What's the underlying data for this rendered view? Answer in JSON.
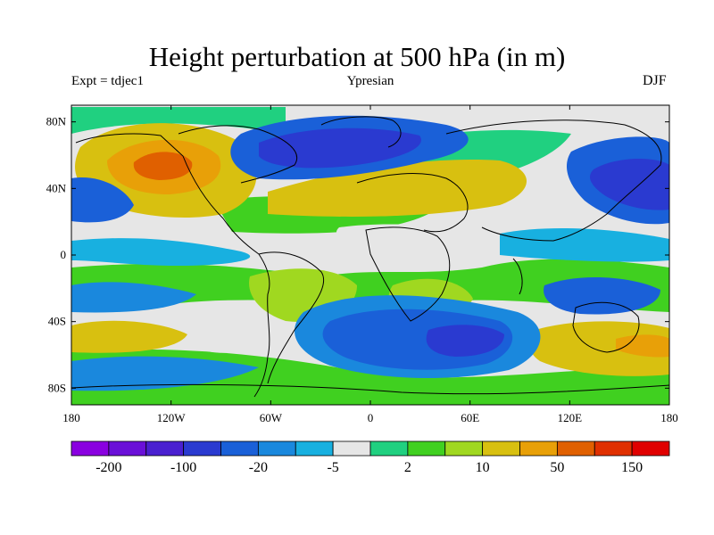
{
  "title": "Height perturbation at 500 hPa (in m)",
  "subtitle_left": "Expt = tdjec1",
  "subtitle_center": "Ypresian",
  "subtitle_right": "DJF",
  "map": {
    "lon_range": [
      -180,
      180
    ],
    "lat_range": [
      -90,
      90
    ],
    "lat_ticks": [
      {
        "value": 80,
        "label": "80N"
      },
      {
        "value": 40,
        "label": "40N"
      },
      {
        "value": 0,
        "label": "0"
      },
      {
        "value": -40,
        "label": "40S"
      },
      {
        "value": -80,
        "label": "80S"
      }
    ],
    "lon_ticks": [
      {
        "value": -180,
        "label": "180"
      },
      {
        "value": -120,
        "label": "120W"
      },
      {
        "value": -60,
        "label": "60W"
      },
      {
        "value": 0,
        "label": "0"
      },
      {
        "value": 60,
        "label": "60E"
      },
      {
        "value": 120,
        "label": "120E"
      },
      {
        "value": 180,
        "label": "180"
      }
    ]
  },
  "colorbar": {
    "colors": [
      "#8a00e0",
      "#6a10d8",
      "#4a20d0",
      "#2a3ad0",
      "#1a60d8",
      "#1a88dd",
      "#18b0e0",
      "#e6e6e6",
      "#20d080",
      "#40d020",
      "#a0d820",
      "#d8c010",
      "#e8a008",
      "#e06000",
      "#e03000",
      "#e00000"
    ],
    "labels": [
      {
        "index": 1,
        "text": "-200"
      },
      {
        "index": 3,
        "text": "-100"
      },
      {
        "index": 5,
        "text": "-20"
      },
      {
        "index": 7,
        "text": "-5"
      },
      {
        "index": 9,
        "text": "2"
      },
      {
        "index": 11,
        "text": "10"
      },
      {
        "index": 13,
        "text": "50"
      },
      {
        "index": 15,
        "text": "150"
      }
    ]
  }
}
